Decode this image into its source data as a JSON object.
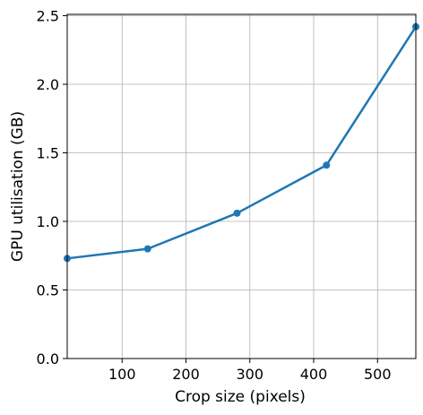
{
  "chart_data": {
    "type": "line",
    "title": "",
    "xlabel": "Crop size (pixels)",
    "ylabel": "GPU utilisation (GB)",
    "xlim": [
      14,
      560
    ],
    "ylim": [
      0.0,
      2.51
    ],
    "xticks": [
      100,
      200,
      300,
      400,
      500
    ],
    "xtick_labels": [
      "100",
      "200",
      "300",
      "400",
      "500"
    ],
    "yticks": [
      0.0,
      0.5,
      1.0,
      1.5,
      2.0,
      2.5
    ],
    "ytick_labels": [
      "0.0",
      "0.5",
      "1.0",
      "1.5",
      "2.0",
      "2.5"
    ],
    "grid": true,
    "series": [
      {
        "color": "#1f77b4",
        "marker": "circle",
        "x": [
          14,
          140,
          280,
          420,
          560
        ],
        "y": [
          0.73,
          0.8,
          1.06,
          1.41,
          2.42
        ]
      }
    ]
  }
}
